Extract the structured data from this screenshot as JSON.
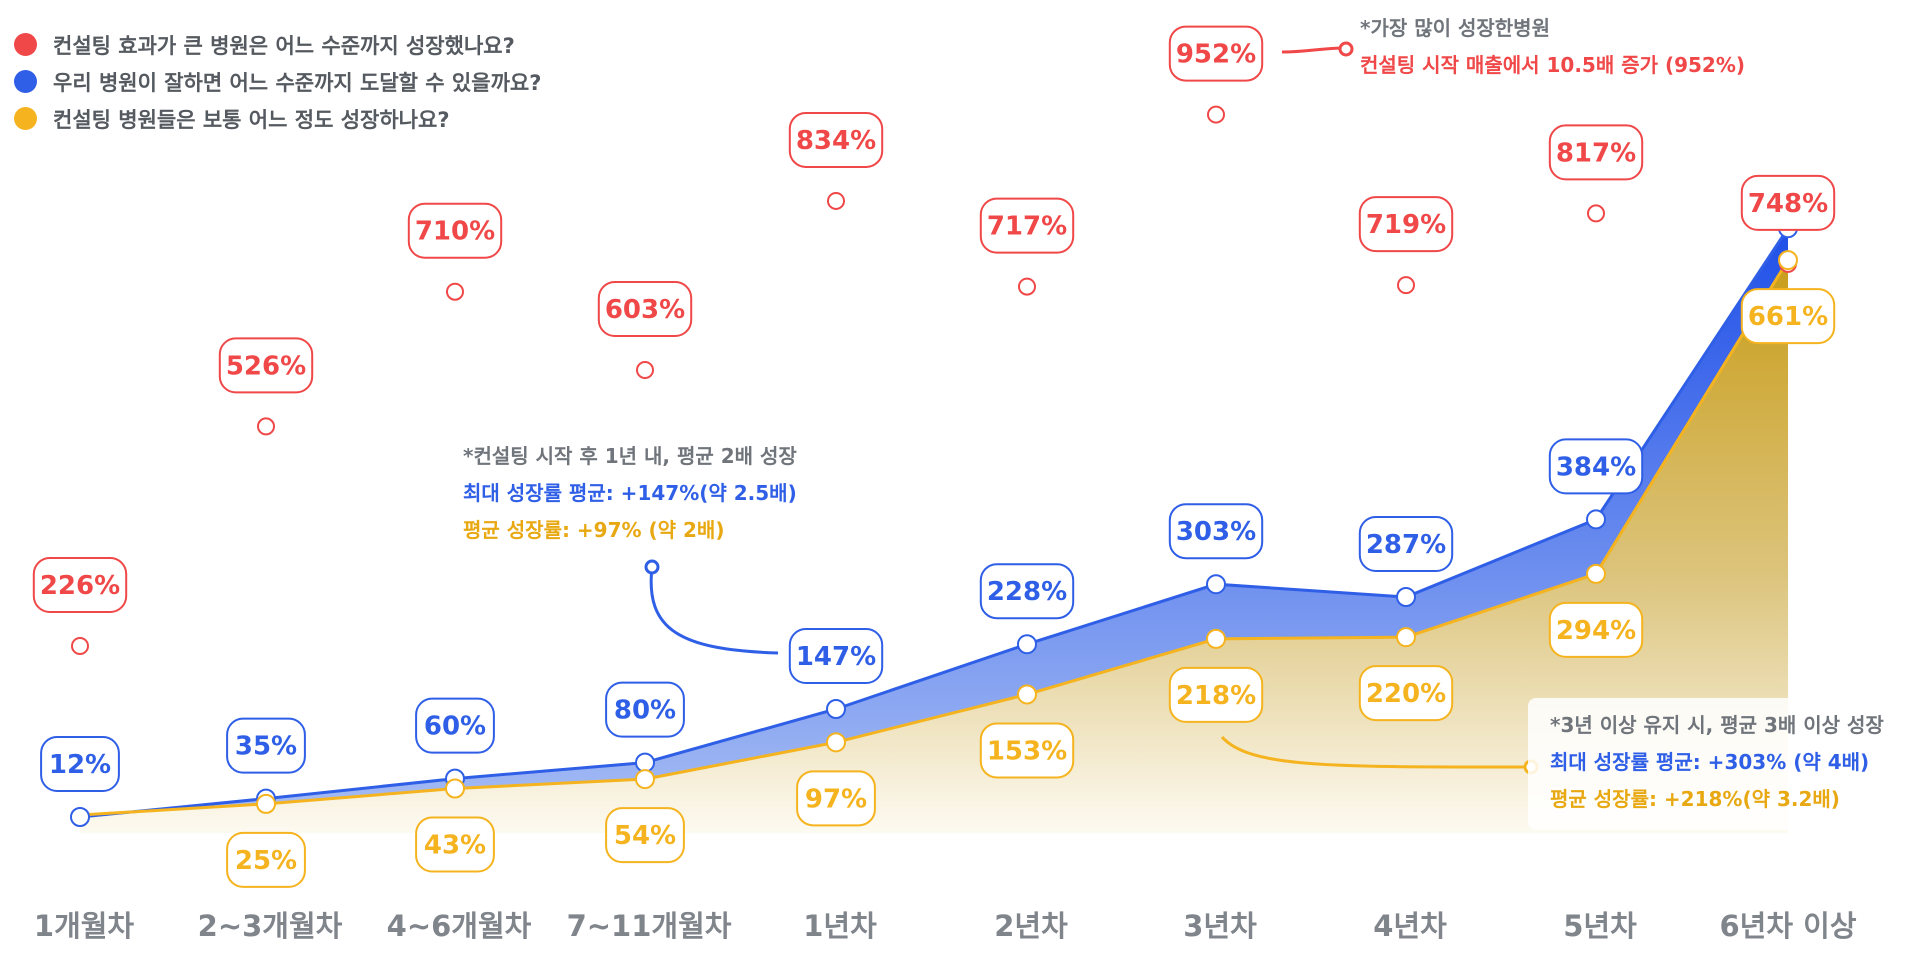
{
  "legend": [
    {
      "label": "컨설팅 효과가 큰 병원은 어느 수준까지 성장했나요?",
      "color": "#f04848"
    },
    {
      "label": "우리 병원이 잘하면 어느 수준까지 도달할 수 있을까요?",
      "color": "#2f5fe6"
    },
    {
      "label": "컨설팅 병원들은 보통 어느 정도 성장하나요?",
      "color": "#f5b41f"
    }
  ],
  "colors": {
    "red": "#f04848",
    "blue": "#2f5fe6",
    "gold": "#f5b41f",
    "axis_text": "#80858c",
    "note_grey": "#70757c"
  },
  "chart_data": {
    "type": "area",
    "categories": [
      "1개월차",
      "2~3개월차",
      "4~6개월차",
      "7~11개월차",
      "1년차",
      "2년차",
      "3년차",
      "4년차",
      "5년차",
      "6년차 이상"
    ],
    "series": [
      {
        "values": [
          226,
          526,
          710,
          603,
          834,
          717,
          952,
          719,
          817,
          748
        ],
        "labels": [
          "226%",
          "526%",
          "710%",
          "603%",
          "834%",
          "717%",
          "952%",
          "719%",
          "817%",
          "748%"
        ]
      },
      {
        "values": [
          12,
          35,
          60,
          80,
          147,
          228,
          303,
          287,
          384,
          748
        ],
        "labels": [
          "12%",
          "35%",
          "60%",
          "80%",
          "147%",
          "228%",
          "303%",
          "287%",
          "384%",
          ""
        ]
      },
      {
        "values": [
          12,
          25,
          43,
          54,
          97,
          153,
          218,
          220,
          294,
          661
        ],
        "labels": [
          "",
          "25%",
          "43%",
          "54%",
          "97%",
          "153%",
          "218%",
          "220%",
          "294%",
          "661%"
        ]
      }
    ]
  },
  "annotations": {
    "top": {
      "line1": "*가장 많이 성장한병원",
      "line2": "컨설팅 시작 매출에서 10.5배 증가 (952%)"
    },
    "year1": {
      "line1": "*컨설팅 시작 후 1년 내, 평균 2배 성장",
      "line2": "최대 성장률 평균: +147%(약  2.5배)",
      "line3": "평균 성장률: +97% (약 2배)"
    },
    "year3": {
      "line1": "*3년 이상 유지 시, 평균 3배 이상 성장",
      "line2": "최대 성장률 평균: +303% (약 4배)",
      "line3": "평균 성장률: +218%(약 3.2배)"
    }
  }
}
